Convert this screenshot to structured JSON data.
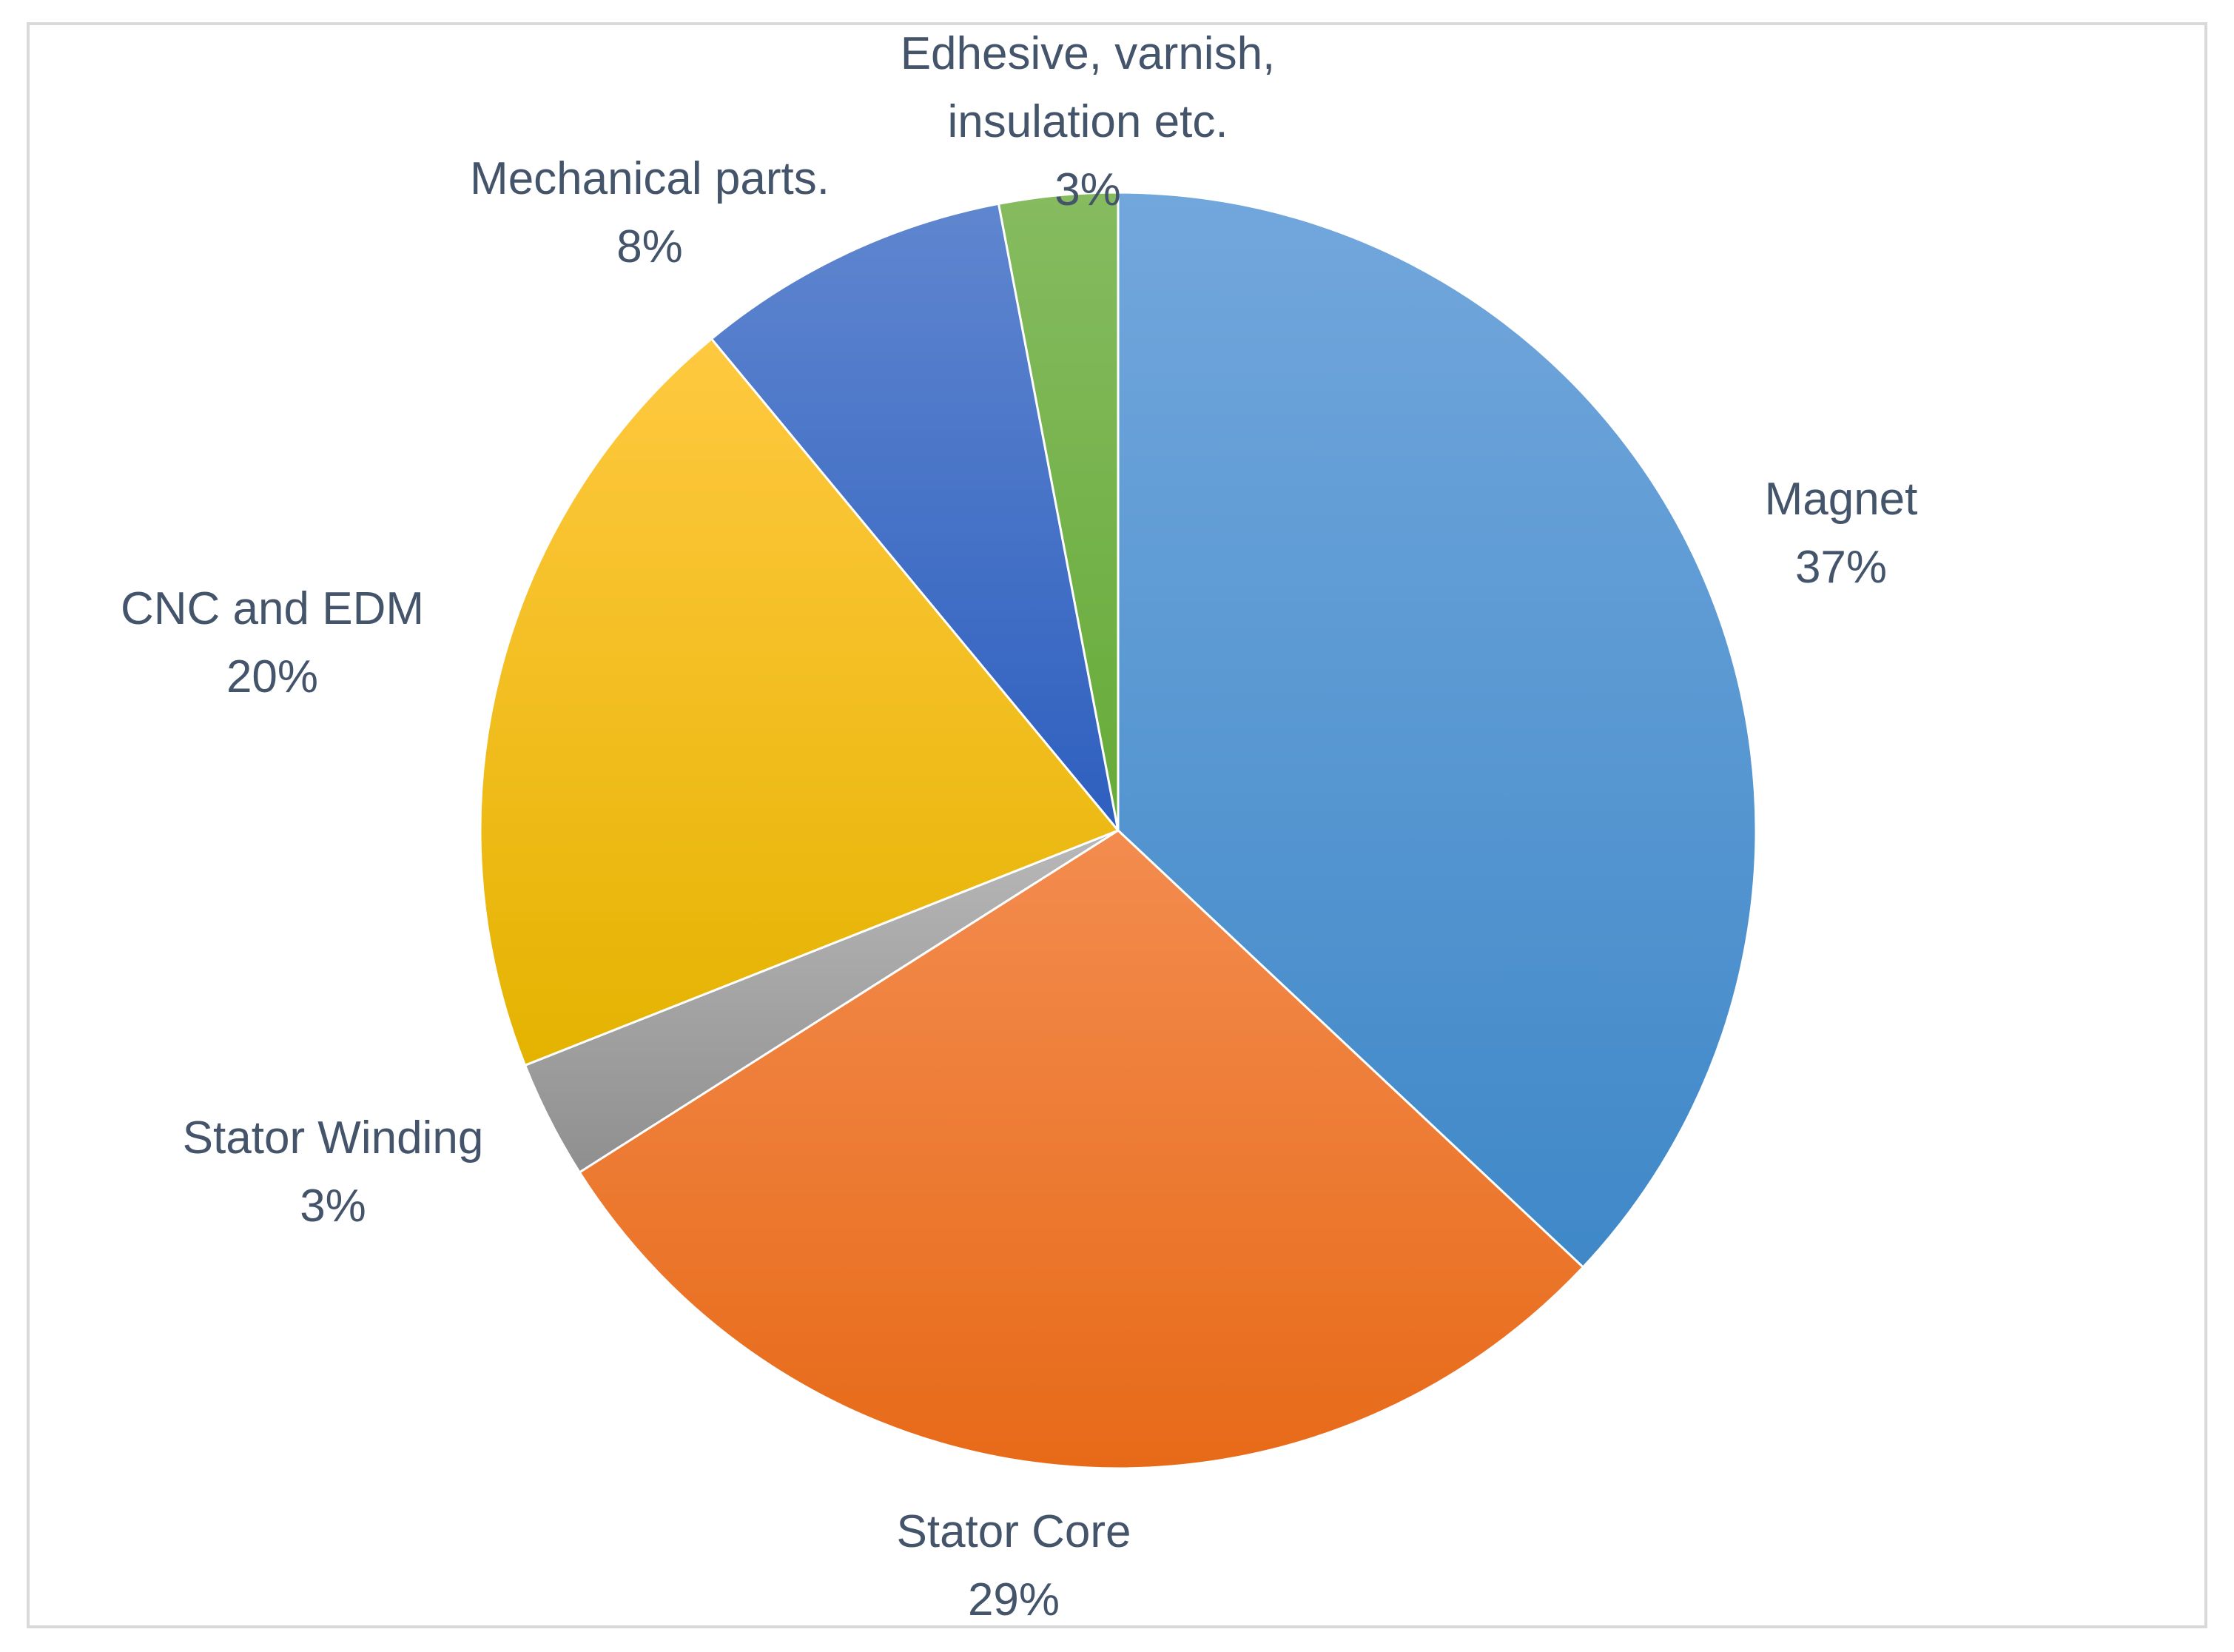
{
  "chart_data": {
    "type": "pie",
    "title": "",
    "slices": [
      {
        "label": "Magnet",
        "value_label": "37%",
        "value": 37,
        "color_top": "#72a7dc",
        "color_bottom": "#3f88c8"
      },
      {
        "label": "Stator Core",
        "value_label": "29%",
        "value": 29,
        "color_top": "#f38c4f",
        "color_bottom": "#e76a18"
      },
      {
        "label": "Stator Winding",
        "value_label": "3%",
        "value": 3,
        "color_top": "#b8b8b8",
        "color_bottom": "#8f8f8f"
      },
      {
        "label": "CNC and EDM",
        "value_label": "20%",
        "value": 20,
        "color_top": "#ffc940",
        "color_bottom": "#e4b300"
      },
      {
        "label": "Mechanical parts.",
        "value_label": "8%",
        "value": 8,
        "color_top": "#5f86cf",
        "color_bottom": "#2e5fbf"
      },
      {
        "label": "Edhesive, varnish, insulation etc.",
        "label_lines": [
          "Edhesive, varnish,",
          "insulation etc."
        ],
        "value_label": "3%",
        "value": 3,
        "color_top": "#86bb60",
        "color_bottom": "#66ab38"
      }
    ],
    "legend": "none",
    "label_text_color": "#44546a"
  }
}
